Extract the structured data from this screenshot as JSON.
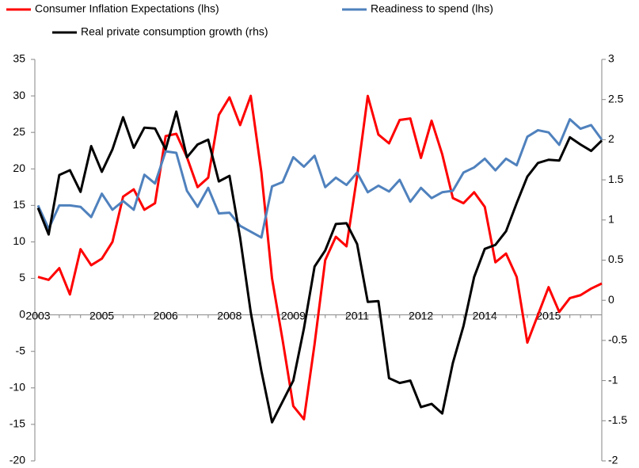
{
  "chart_data": {
    "type": "line",
    "categories": [
      "2003",
      null,
      null,
      null,
      null,
      null,
      "2005",
      null,
      null,
      null,
      null,
      null,
      "2006",
      null,
      null,
      null,
      null,
      null,
      "2008",
      null,
      null,
      null,
      null,
      null,
      "2009",
      null,
      null,
      null,
      null,
      null,
      "2011",
      null,
      null,
      null,
      null,
      null,
      "2012",
      null,
      null,
      null,
      null,
      null,
      "2014",
      null,
      null,
      null,
      null,
      null,
      "2015",
      null,
      null,
      null,
      null,
      null
    ],
    "series": [
      {
        "name": "Consumer Inflation Expectations (lhs)",
        "color": "#ff0000",
        "values": [
          5.2,
          4.8,
          6.4,
          2.8,
          9.0,
          6.8,
          7.7,
          10.0,
          16.2,
          17.2,
          14.4,
          15.3,
          24.5,
          24.8,
          21.6,
          17.5,
          18.8,
          27.4,
          29.8,
          26.0,
          30.0,
          19.5,
          5.0,
          -3.5,
          -12.5,
          -14.3,
          -4.0,
          7.5,
          10.7,
          9.4,
          19.0,
          30.0,
          24.7,
          23.5,
          26.7,
          26.9,
          21.5,
          26.6,
          22.0,
          16.0,
          15.3,
          16.8,
          14.8,
          7.2,
          8.4,
          5.2,
          -3.8,
          0.0,
          3.8,
          0.4,
          2.3,
          2.7,
          3.6,
          4.3
        ]
      },
      {
        "name": "Readiness to spend (lhs)",
        "color": "#4f81bd",
        "values": [
          15.0,
          11.8,
          15.0,
          15.0,
          14.8,
          13.4,
          16.6,
          14.4,
          15.6,
          14.4,
          19.2,
          18.0,
          22.4,
          22.2,
          17.0,
          14.8,
          17.4,
          13.9,
          14.0,
          12.2,
          11.4,
          10.6,
          17.6,
          18.2,
          21.6,
          20.3,
          21.8,
          17.5,
          18.8,
          17.8,
          19.5,
          16.8,
          17.7,
          16.9,
          18.5,
          15.5,
          17.4,
          16.0,
          16.8,
          17.0,
          19.5,
          20.2,
          21.4,
          19.8,
          21.4,
          20.5,
          24.4,
          25.3,
          25.0,
          23.3,
          26.8,
          25.5,
          26.0,
          24.0
        ]
      },
      {
        "name": "Real private consumption growth (rhs)",
        "color": "#000000",
        "axis": "y2",
        "values": [
          1.15,
          0.82,
          1.56,
          1.62,
          1.35,
          1.92,
          1.6,
          1.88,
          2.28,
          1.9,
          2.15,
          2.14,
          1.88,
          2.35,
          1.78,
          1.94,
          2.0,
          1.48,
          1.55,
          0.78,
          -0.15,
          -0.88,
          -1.52,
          -1.26,
          -1.0,
          -0.35,
          0.42,
          0.62,
          0.95,
          0.96,
          0.7,
          -0.02,
          -0.01,
          -0.97,
          -1.03,
          -1.0,
          -1.33,
          -1.29,
          -1.41,
          -0.78,
          -0.32,
          0.29,
          0.64,
          0.69,
          0.86,
          1.21,
          1.54,
          1.71,
          1.75,
          1.74,
          2.03,
          1.94,
          1.86,
          1.99
        ]
      }
    ],
    "ylim": [
      -20,
      35
    ],
    "yticks": [
      -20,
      -15,
      -10,
      -5,
      0,
      5,
      10,
      15,
      20,
      25,
      30,
      35
    ],
    "y2lim": [
      -2,
      3
    ],
    "y2ticks": [
      -2,
      -1.5,
      -1,
      -0.5,
      0,
      0.5,
      1,
      1.5,
      2,
      2.5,
      3
    ],
    "grid": false,
    "legend": "top"
  }
}
